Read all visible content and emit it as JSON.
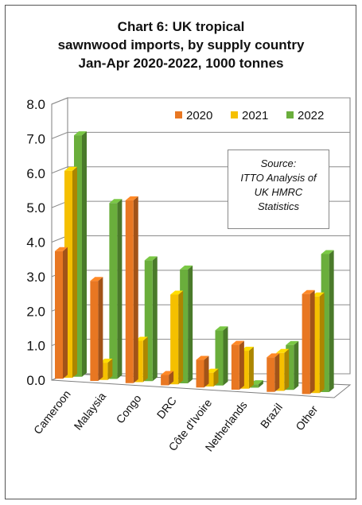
{
  "title_lines": [
    "Chart 6: UK tropical",
    "sawnwood imports, by supply country",
    "Jan-Apr 2020-2022, 1000 tonnes"
  ],
  "source_box": [
    "Source:",
    "ITTO Analysis of",
    "UK HMRC",
    "Statistics"
  ],
  "colors": {
    "2020": "#E87722",
    "2021": "#F5C000",
    "2022": "#6AAE3C"
  },
  "chart_data": {
    "type": "bar",
    "title": "Chart 6: UK tropical sawnwood imports, by supply country Jan-Apr 2020-2022, 1000 tonnes",
    "categories": [
      "Cameroon",
      "Malaysia",
      "Congo",
      "DRC",
      "Côte d'Ivoire",
      "Netherlands",
      "Brazil",
      "Other"
    ],
    "series": [
      {
        "name": "2020",
        "values": [
          3.7,
          2.9,
          5.3,
          0.3,
          0.8,
          1.3,
          1.0,
          2.9
        ]
      },
      {
        "name": "2021",
        "values": [
          6.0,
          0.5,
          1.2,
          2.6,
          0.4,
          1.1,
          1.1,
          2.8
        ]
      },
      {
        "name": "2022",
        "values": [
          7.0,
          5.1,
          3.5,
          3.3,
          1.6,
          0.1,
          1.3,
          4.0
        ]
      }
    ],
    "ylim": [
      0,
      8
    ],
    "yticks": [
      "0.0",
      "1.0",
      "2.0",
      "3.0",
      "4.0",
      "5.0",
      "6.0",
      "7.0",
      "8.0"
    ],
    "legend_position": "top-right",
    "grid": true,
    "style": "3d-clustered-column"
  }
}
